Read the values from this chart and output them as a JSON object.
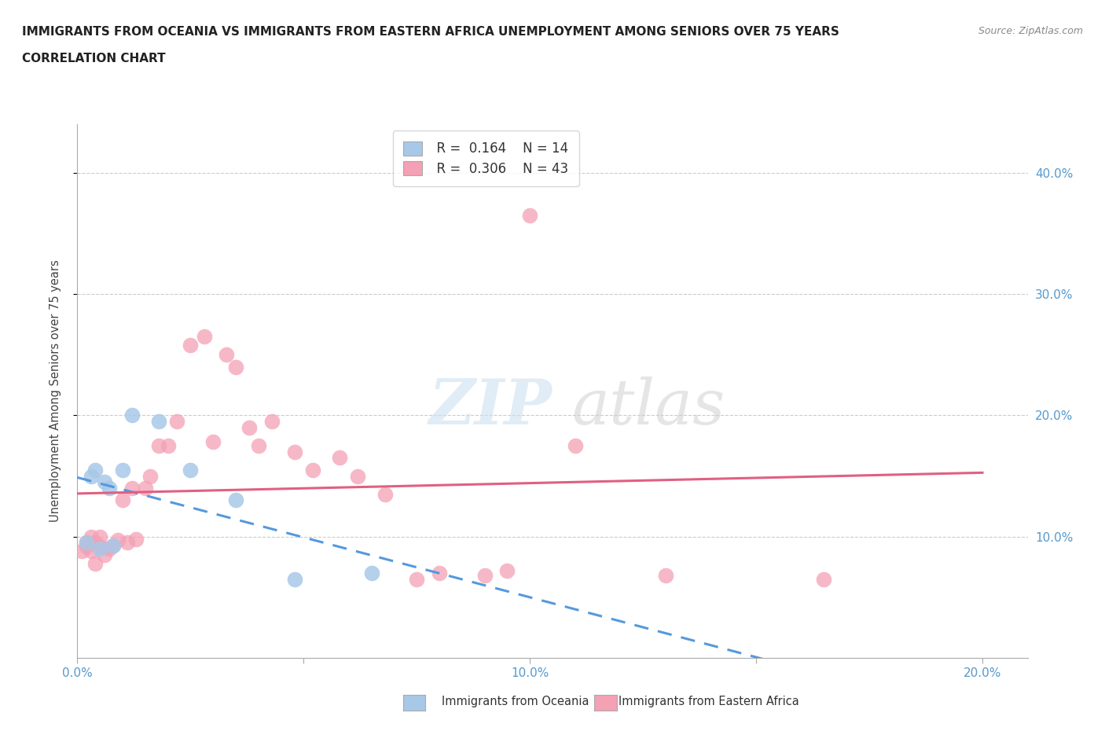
{
  "title_line1": "IMMIGRANTS FROM OCEANIA VS IMMIGRANTS FROM EASTERN AFRICA UNEMPLOYMENT AMONG SENIORS OVER 75 YEARS",
  "title_line2": "CORRELATION CHART",
  "source": "Source: ZipAtlas.com",
  "ylabel": "Unemployment Among Seniors over 75 years",
  "xlim": [
    0.0,
    0.21
  ],
  "ylim": [
    0.0,
    0.44
  ],
  "yticks": [
    0.1,
    0.2,
    0.3,
    0.4
  ],
  "ytick_labels": [
    "10.0%",
    "20.0%",
    "30.0%",
    "40.0%"
  ],
  "xticks": [
    0.0,
    0.05,
    0.1,
    0.15,
    0.2
  ],
  "xtick_labels": [
    "0.0%",
    "",
    "10.0%",
    "",
    "20.0%"
  ],
  "legend_r1": "R =  0.164",
  "legend_n1": "N = 14",
  "legend_r2": "R =  0.306",
  "legend_n2": "N = 43",
  "oceania_color": "#a8c8e8",
  "eastern_africa_color": "#f4a0b5",
  "oceania_line_color": "#5599dd",
  "eastern_africa_line_color": "#e06080",
  "oceania_x": [
    0.002,
    0.003,
    0.004,
    0.005,
    0.006,
    0.007,
    0.008,
    0.01,
    0.012,
    0.018,
    0.025,
    0.035,
    0.048,
    0.065
  ],
  "oceania_y": [
    0.095,
    0.15,
    0.155,
    0.09,
    0.145,
    0.14,
    0.093,
    0.155,
    0.2,
    0.195,
    0.155,
    0.13,
    0.065,
    0.07
  ],
  "eastern_africa_x": [
    0.001,
    0.002,
    0.002,
    0.003,
    0.003,
    0.004,
    0.004,
    0.005,
    0.005,
    0.006,
    0.007,
    0.008,
    0.009,
    0.01,
    0.011,
    0.012,
    0.013,
    0.015,
    0.016,
    0.018,
    0.02,
    0.022,
    0.025,
    0.028,
    0.03,
    0.033,
    0.035,
    0.038,
    0.04,
    0.043,
    0.048,
    0.052,
    0.058,
    0.062,
    0.068,
    0.075,
    0.08,
    0.09,
    0.095,
    0.1,
    0.11,
    0.13,
    0.165
  ],
  "eastern_africa_y": [
    0.088,
    0.092,
    0.095,
    0.088,
    0.1,
    0.078,
    0.095,
    0.092,
    0.1,
    0.085,
    0.09,
    0.093,
    0.097,
    0.13,
    0.095,
    0.14,
    0.098,
    0.14,
    0.15,
    0.175,
    0.175,
    0.195,
    0.258,
    0.265,
    0.178,
    0.25,
    0.24,
    0.19,
    0.175,
    0.195,
    0.17,
    0.155,
    0.165,
    0.15,
    0.135,
    0.065,
    0.07,
    0.068,
    0.072,
    0.365,
    0.175,
    0.068,
    0.065
  ],
  "background_color": "#ffffff",
  "grid_color": "#cccccc",
  "label_oceania": "Immigrants from Oceania",
  "label_eastern": "Immigrants from Eastern Africa"
}
